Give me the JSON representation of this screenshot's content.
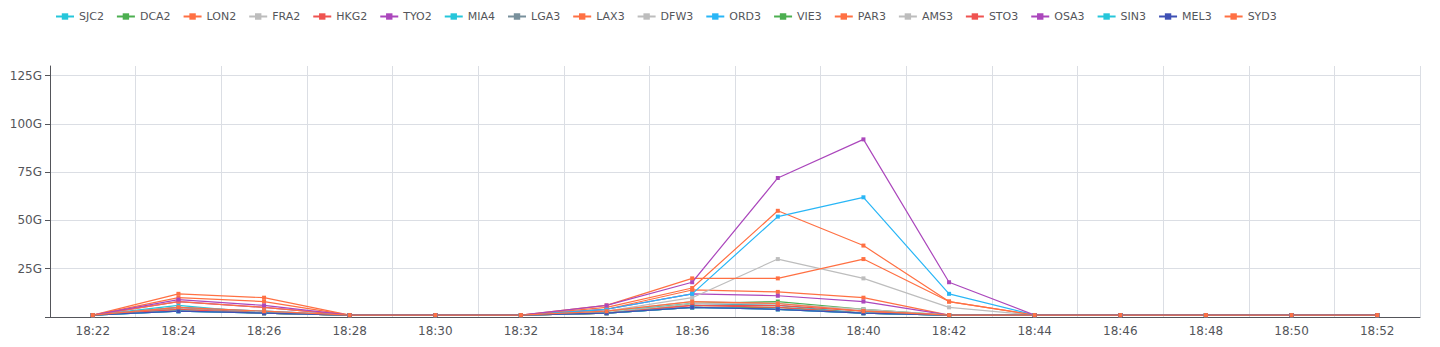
{
  "chart_data": {
    "type": "line",
    "categories": [
      "18:22",
      "18:24",
      "18:26",
      "18:28",
      "18:30",
      "18:32",
      "18:34",
      "18:36",
      "18:38",
      "18:40",
      "18:42",
      "18:44",
      "18:46",
      "18:48",
      "18:50",
      "18:52"
    ],
    "series": [
      {
        "name": "SJC2",
        "color": "#26c6da",
        "values": [
          1,
          6,
          2,
          1,
          1,
          1,
          3,
          7,
          6,
          2,
          1,
          1,
          1,
          1,
          1,
          1
        ]
      },
      {
        "name": "DCA2",
        "color": "#4caf50",
        "values": [
          1,
          4,
          2,
          1,
          1,
          1,
          2,
          5,
          5,
          2,
          1,
          1,
          1,
          1,
          1,
          1
        ]
      },
      {
        "name": "LON2",
        "color": "#ff7043",
        "values": [
          1,
          10,
          8,
          1,
          1,
          1,
          4,
          14,
          13,
          10,
          1,
          1,
          1,
          1,
          1,
          1
        ]
      },
      {
        "name": "FRA2",
        "color": "#bdbdbd",
        "values": [
          1,
          4,
          2,
          1,
          1,
          1,
          3,
          8,
          7,
          3,
          1,
          1,
          1,
          1,
          1,
          1
        ]
      },
      {
        "name": "HKG2",
        "color": "#ef5350",
        "values": [
          1,
          5,
          2,
          1,
          1,
          1,
          2,
          6,
          5,
          2,
          1,
          1,
          1,
          1,
          1,
          1
        ]
      },
      {
        "name": "TYO2",
        "color": "#ab47bc",
        "values": [
          1,
          8,
          5,
          1,
          1,
          1,
          4,
          12,
          11,
          8,
          1,
          1,
          1,
          1,
          1,
          1
        ]
      },
      {
        "name": "MIA4",
        "color": "#26c6da",
        "values": [
          1,
          3,
          2,
          1,
          1,
          1,
          2,
          5,
          4,
          2,
          1,
          1,
          1,
          1,
          1,
          1
        ]
      },
      {
        "name": "LGA3",
        "color": "#78909c",
        "values": [
          1,
          3,
          2,
          1,
          1,
          1,
          2,
          5,
          4,
          2,
          1,
          1,
          1,
          1,
          1,
          1
        ]
      },
      {
        "name": "LAX3",
        "color": "#ff7043",
        "values": [
          1,
          8,
          5,
          1,
          1,
          1,
          5,
          15,
          55,
          37,
          8,
          1,
          1,
          1,
          1,
          1
        ]
      },
      {
        "name": "DFW3",
        "color": "#bdbdbd",
        "values": [
          1,
          5,
          3,
          1,
          1,
          1,
          3,
          10,
          30,
          20,
          5,
          1,
          1,
          1,
          1,
          1
        ]
      },
      {
        "name": "ORD3",
        "color": "#29b6f6",
        "values": [
          1,
          5,
          3,
          1,
          1,
          1,
          4,
          12,
          52,
          62,
          12,
          1,
          1,
          1,
          1,
          1
        ]
      },
      {
        "name": "VIE3",
        "color": "#4caf50",
        "values": [
          1,
          4,
          2,
          1,
          1,
          1,
          2,
          7,
          8,
          4,
          1,
          1,
          1,
          1,
          1,
          1
        ]
      },
      {
        "name": "PAR3",
        "color": "#ff7043",
        "values": [
          1,
          12,
          10,
          1,
          1,
          1,
          6,
          20,
          20,
          30,
          8,
          1,
          1,
          1,
          1,
          1
        ]
      },
      {
        "name": "AMS3",
        "color": "#bdbdbd",
        "values": [
          1,
          4,
          2,
          1,
          1,
          1,
          2,
          7,
          7,
          4,
          1,
          1,
          1,
          1,
          1,
          1
        ]
      },
      {
        "name": "STO3",
        "color": "#ef5350",
        "values": [
          1,
          4,
          2,
          1,
          1,
          1,
          2,
          6,
          6,
          3,
          1,
          1,
          1,
          1,
          1,
          1
        ]
      },
      {
        "name": "OSA3",
        "color": "#ab47bc",
        "values": [
          1,
          9,
          6,
          1,
          1,
          1,
          6,
          18,
          72,
          92,
          18,
          1,
          1,
          1,
          1,
          1
        ]
      },
      {
        "name": "SIN3",
        "color": "#26c6da",
        "values": [
          1,
          3,
          2,
          1,
          1,
          1,
          2,
          5,
          4,
          2,
          1,
          1,
          1,
          1,
          1,
          1
        ]
      },
      {
        "name": "MEL3",
        "color": "#3f51b5",
        "values": [
          1,
          3,
          2,
          1,
          1,
          1,
          2,
          5,
          4,
          2,
          1,
          1,
          1,
          1,
          1,
          1
        ]
      },
      {
        "name": "SYD3",
        "color": "#ff7043",
        "values": [
          1,
          5,
          3,
          1,
          1,
          1,
          3,
          8,
          7,
          3,
          1,
          1,
          1,
          1,
          1,
          1
        ]
      }
    ],
    "ylim": [
      0,
      130
    ],
    "yticks": [
      {
        "value": 0,
        "label": ""
      },
      {
        "value": 25,
        "label": "25G"
      },
      {
        "value": 50,
        "label": "50G"
      },
      {
        "value": 75,
        "label": "75G"
      },
      {
        "value": 100,
        "label": "100G"
      },
      {
        "value": 125,
        "label": "125G"
      }
    ],
    "grid": true,
    "legend": "upper left",
    "marker": "square",
    "line_style": "solid"
  }
}
